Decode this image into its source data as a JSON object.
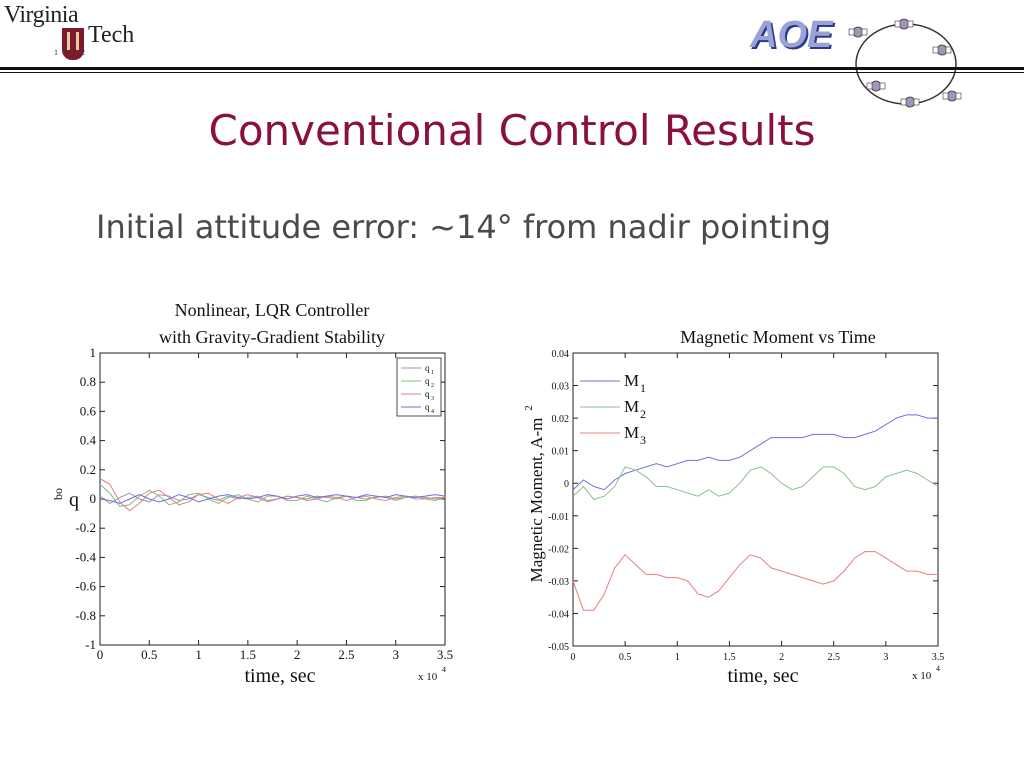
{
  "header": {
    "logo_vt": {
      "word1": "Virginia",
      "word2": "Tech",
      "year": "1872"
    },
    "logo_aoe": "AOE"
  },
  "slide": {
    "title": "Conventional Control Results",
    "subtitle": "Initial attitude error: ~14° from nadir pointing"
  },
  "chart_data": [
    {
      "type": "line",
      "title_lines": [
        "Nonlinear, LQR Controller",
        "with Gravity-Gradient Stability"
      ],
      "xlabel": "time, sec",
      "ylabel": "q",
      "ylabel_superscript": "bo",
      "x_multiplier": "x 10",
      "x_multiplier_exp": "4",
      "xlim": [
        0,
        3.5
      ],
      "ylim": [
        -1,
        1
      ],
      "xticks": [
        "0",
        "0.5",
        "1",
        "1.5",
        "2",
        "2.5",
        "3",
        "3.5"
      ],
      "yticks": [
        "1",
        "0.8",
        "0.6",
        "0.4",
        "0.2",
        "0",
        "-0.2",
        "-0.4",
        "-0.6",
        "-0.8",
        "-1"
      ],
      "legend": "top-right",
      "x": [
        0,
        0.1,
        0.2,
        0.3,
        0.4,
        0.5,
        0.6,
        0.7,
        0.8,
        0.9,
        1.0,
        1.1,
        1.2,
        1.3,
        1.4,
        1.5,
        1.6,
        1.7,
        1.8,
        1.9,
        2.0,
        2.1,
        2.2,
        2.3,
        2.4,
        2.5,
        2.6,
        2.7,
        2.8,
        2.9,
        3.0,
        3.1,
        3.2,
        3.3,
        3.4,
        3.5
      ],
      "series": [
        {
          "name": "q",
          "sub": "1",
          "color": "#9a9aa8",
          "values": [
            0.02,
            -0.03,
            0.01,
            0.04,
            0.0,
            -0.02,
            0.03,
            0.02,
            -0.01,
            0.0,
            0.03,
            0.01,
            -0.01,
            0.02,
            0.0,
            0.01,
            0.02,
            -0.01,
            0.0,
            0.02,
            0.01,
            0.0,
            0.02,
            0.01,
            0.0,
            0.02,
            0.01,
            0.0,
            0.01,
            0.02,
            0.0,
            0.01,
            0.02,
            0.01,
            0.0,
            0.01
          ]
        },
        {
          "name": "q",
          "sub": "2",
          "color": "#7fbf7f",
          "values": [
            0.1,
            0.04,
            -0.05,
            -0.04,
            0.02,
            0.06,
            0.02,
            -0.04,
            -0.02,
            0.03,
            0.04,
            0.0,
            -0.03,
            0.01,
            0.03,
            0.0,
            -0.02,
            0.02,
            0.02,
            -0.01,
            -0.01,
            0.02,
            0.0,
            -0.02,
            0.01,
            0.02,
            -0.01,
            -0.01,
            0.02,
            0.01,
            -0.01,
            0.01,
            0.02,
            0.0,
            -0.01,
            0.01
          ]
        },
        {
          "name": "q",
          "sub": "3",
          "color": "#e87f7f",
          "values": [
            0.14,
            0.1,
            -0.02,
            -0.08,
            -0.03,
            0.04,
            0.06,
            0.01,
            -0.04,
            -0.02,
            0.03,
            0.04,
            0.0,
            -0.03,
            0.01,
            0.03,
            0.01,
            -0.02,
            0.0,
            0.02,
            0.01,
            -0.01,
            0.0,
            0.02,
            0.01,
            -0.01,
            0.01,
            0.02,
            0.0,
            -0.01,
            0.01,
            0.02,
            0.0,
            0.0,
            0.01,
            0.01
          ]
        },
        {
          "name": "q",
          "sub": "4",
          "color": "#6f6fe0",
          "values": [
            0.0,
            -0.01,
            -0.03,
            0.0,
            0.03,
            0.0,
            -0.02,
            0.0,
            0.03,
            0.01,
            -0.02,
            0.0,
            0.02,
            0.03,
            0.01,
            0.0,
            0.01,
            0.03,
            0.02,
            0.0,
            0.02,
            0.03,
            0.01,
            0.02,
            0.03,
            0.02,
            0.01,
            0.03,
            0.02,
            0.01,
            0.03,
            0.02,
            0.01,
            0.02,
            0.03,
            0.02
          ]
        }
      ]
    },
    {
      "type": "line",
      "title_lines": [
        "Magnetic Moment vs Time"
      ],
      "xlabel": "time, sec",
      "ylabel": "Magnetic Moment, A-m",
      "ylabel_superscript": "2",
      "x_multiplier": "x 10",
      "x_multiplier_exp": "4",
      "xlim": [
        0,
        3.5
      ],
      "ylim": [
        -0.05,
        0.04
      ],
      "xticks": [
        "0",
        "0.5",
        "1",
        "1.5",
        "2",
        "2.5",
        "3",
        "3.5"
      ],
      "yticks": [
        "0.04",
        "0.03",
        "0.02",
        "0.01",
        "0",
        "-0.01",
        "-0.02",
        "-0.03",
        "-0.04",
        "-0.05"
      ],
      "legend": "top-left",
      "x": [
        0,
        0.1,
        0.2,
        0.3,
        0.4,
        0.5,
        0.6,
        0.7,
        0.8,
        0.9,
        1.0,
        1.1,
        1.2,
        1.3,
        1.4,
        1.5,
        1.6,
        1.7,
        1.8,
        1.9,
        2.0,
        2.1,
        2.2,
        2.3,
        2.4,
        2.5,
        2.6,
        2.7,
        2.8,
        2.9,
        3.0,
        3.1,
        3.2,
        3.3,
        3.4,
        3.5
      ],
      "series": [
        {
          "name": "M",
          "sub": "1",
          "color": "#6f6fe0",
          "values": [
            -0.002,
            0.001,
            -0.001,
            -0.002,
            0.001,
            0.003,
            0.004,
            0.005,
            0.006,
            0.005,
            0.006,
            0.007,
            0.007,
            0.008,
            0.007,
            0.007,
            0.008,
            0.01,
            0.012,
            0.014,
            0.014,
            0.014,
            0.014,
            0.015,
            0.015,
            0.015,
            0.014,
            0.014,
            0.015,
            0.016,
            0.018,
            0.02,
            0.021,
            0.021,
            0.02,
            0.02
          ]
        },
        {
          "name": "M",
          "sub": "2",
          "color": "#8fbf8f",
          "values": [
            -0.004,
            -0.001,
            -0.005,
            -0.004,
            -0.001,
            0.005,
            0.004,
            0.002,
            -0.001,
            -0.001,
            -0.002,
            -0.003,
            -0.004,
            -0.002,
            -0.004,
            -0.003,
            0.0,
            0.004,
            0.005,
            0.003,
            0.0,
            -0.002,
            -0.001,
            0.002,
            0.005,
            0.005,
            0.003,
            -0.001,
            -0.002,
            -0.001,
            0.002,
            0.003,
            0.004,
            0.003,
            0.001,
            -0.001
          ]
        },
        {
          "name": "M",
          "sub": "3",
          "color": "#e87f7f",
          "values": [
            -0.03,
            -0.039,
            -0.039,
            -0.034,
            -0.026,
            -0.022,
            -0.025,
            -0.028,
            -0.028,
            -0.029,
            -0.029,
            -0.03,
            -0.034,
            -0.035,
            -0.033,
            -0.029,
            -0.025,
            -0.022,
            -0.023,
            -0.026,
            -0.027,
            -0.028,
            -0.029,
            -0.03,
            -0.031,
            -0.03,
            -0.027,
            -0.023,
            -0.021,
            -0.021,
            -0.023,
            -0.025,
            -0.027,
            -0.027,
            -0.028,
            -0.028
          ]
        }
      ]
    }
  ]
}
